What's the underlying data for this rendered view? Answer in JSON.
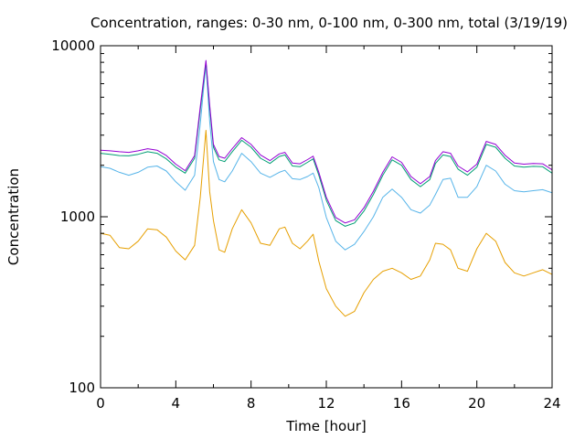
{
  "chart_data": {
    "type": "line",
    "title": "Concentration, ranges: 0-30 nm, 0-100 nm, 0-300 nm, total (3/19/19)",
    "xlabel": "Time [hour]",
    "ylabel": "Concentration",
    "xlim": [
      0,
      24
    ],
    "ylim": [
      100,
      10000
    ],
    "yscale": "log",
    "grid": false,
    "legend": "none",
    "x_ticks": [
      0,
      4,
      8,
      12,
      16,
      20,
      24
    ],
    "x_tick_labels": [
      "0",
      "4",
      "8",
      "12",
      "16",
      "20",
      "24"
    ],
    "y_ticks": [
      100,
      1000,
      10000
    ],
    "y_tick_labels": [
      "100",
      "1000",
      "10000"
    ],
    "series": [
      {
        "color": "#e69f00",
        "x": [
          0,
          0.5,
          1,
          1.5,
          2,
          2.5,
          3,
          3.5,
          4,
          4.5,
          5,
          5.3,
          5.6,
          5.8,
          6,
          6.3,
          6.6,
          7,
          7.5,
          8,
          8.5,
          9,
          9.5,
          9.8,
          10.2,
          10.6,
          11,
          11.3,
          11.6,
          12,
          12.5,
          13,
          13.5,
          14,
          14.5,
          15,
          15.5,
          16,
          16.5,
          17,
          17.5,
          17.8,
          18.2,
          18.6,
          19,
          19.5,
          20,
          20.5,
          21,
          21.5,
          22,
          22.5,
          23,
          23.5,
          24
        ],
        "y": [
          800,
          780,
          660,
          650,
          720,
          850,
          840,
          760,
          630,
          560,
          680,
          1300,
          3200,
          1400,
          950,
          640,
          620,
          850,
          1100,
          920,
          700,
          680,
          850,
          870,
          700,
          650,
          720,
          790,
          550,
          380,
          300,
          262,
          280,
          360,
          430,
          480,
          500,
          470,
          430,
          450,
          560,
          700,
          690,
          640,
          500,
          480,
          650,
          800,
          720,
          540,
          470,
          450,
          470,
          490,
          460
        ]
      },
      {
        "color": "#56b4e9",
        "x": [
          0,
          0.5,
          1,
          1.5,
          2,
          2.5,
          3,
          3.5,
          4,
          4.5,
          5,
          5.3,
          5.6,
          5.8,
          6,
          6.3,
          6.6,
          7,
          7.5,
          8,
          8.5,
          9,
          9.5,
          9.8,
          10.2,
          10.6,
          11,
          11.3,
          11.6,
          12,
          12.5,
          13,
          13.5,
          14,
          14.5,
          15,
          15.5,
          16,
          16.5,
          17,
          17.5,
          17.8,
          18.2,
          18.6,
          19,
          19.5,
          20,
          20.5,
          21,
          21.5,
          22,
          22.5,
          23,
          23.5,
          24
        ],
        "y": [
          1960,
          1920,
          1820,
          1750,
          1820,
          1950,
          1980,
          1850,
          1600,
          1430,
          1750,
          3500,
          7800,
          3600,
          2100,
          1650,
          1600,
          1850,
          2350,
          2100,
          1800,
          1700,
          1820,
          1870,
          1670,
          1650,
          1720,
          1800,
          1480,
          990,
          720,
          640,
          690,
          820,
          1000,
          1300,
          1450,
          1300,
          1100,
          1050,
          1170,
          1350,
          1650,
          1680,
          1300,
          1300,
          1500,
          2000,
          1850,
          1550,
          1420,
          1400,
          1420,
          1440,
          1380
        ]
      },
      {
        "color": "#009e73",
        "x": [
          0,
          0.5,
          1,
          1.5,
          2,
          2.5,
          3,
          3.5,
          4,
          4.5,
          5,
          5.3,
          5.6,
          5.8,
          6,
          6.3,
          6.6,
          7,
          7.5,
          8,
          8.5,
          9,
          9.5,
          9.8,
          10.2,
          10.6,
          11,
          11.3,
          11.6,
          12,
          12.5,
          13,
          13.5,
          14,
          14.5,
          15,
          15.5,
          16,
          16.5,
          17,
          17.5,
          17.8,
          18.2,
          18.6,
          19,
          19.5,
          20,
          20.5,
          21,
          21.5,
          22,
          22.5,
          23,
          23.5,
          24
        ],
        "y": [
          2350,
          2320,
          2280,
          2270,
          2320,
          2400,
          2350,
          2180,
          1950,
          1800,
          2200,
          4200,
          8000,
          4300,
          2550,
          2150,
          2100,
          2400,
          2800,
          2550,
          2200,
          2050,
          2250,
          2300,
          1980,
          1960,
          2080,
          2180,
          1750,
          1250,
          950,
          880,
          920,
          1080,
          1350,
          1750,
          2150,
          2000,
          1650,
          1500,
          1650,
          2050,
          2300,
          2250,
          1900,
          1750,
          1950,
          2650,
          2550,
          2200,
          1980,
          1950,
          1970,
          1960,
          1800
        ]
      },
      {
        "color": "#9400d3",
        "x": [
          0,
          0.5,
          1,
          1.5,
          2,
          2.5,
          3,
          3.5,
          4,
          4.5,
          5,
          5.3,
          5.6,
          5.8,
          6,
          6.3,
          6.6,
          7,
          7.5,
          8,
          8.5,
          9,
          9.5,
          9.8,
          10.2,
          10.6,
          11,
          11.3,
          11.6,
          12,
          12.5,
          13,
          13.5,
          14,
          14.5,
          15,
          15.5,
          16,
          16.5,
          17,
          17.5,
          17.8,
          18.2,
          18.6,
          19,
          19.5,
          20,
          20.5,
          21,
          21.5,
          22,
          22.5,
          23,
          23.5,
          24
        ],
        "y": [
          2450,
          2430,
          2400,
          2380,
          2430,
          2500,
          2450,
          2280,
          2030,
          1860,
          2280,
          4400,
          8200,
          4500,
          2650,
          2250,
          2200,
          2500,
          2900,
          2650,
          2300,
          2130,
          2330,
          2380,
          2060,
          2040,
          2160,
          2260,
          1820,
          1300,
          990,
          920,
          960,
          1130,
          1410,
          1820,
          2240,
          2080,
          1720,
          1560,
          1720,
          2130,
          2400,
          2350,
          1980,
          1830,
          2030,
          2760,
          2650,
          2290,
          2060,
          2030,
          2050,
          2040,
          1880
        ]
      }
    ]
  }
}
